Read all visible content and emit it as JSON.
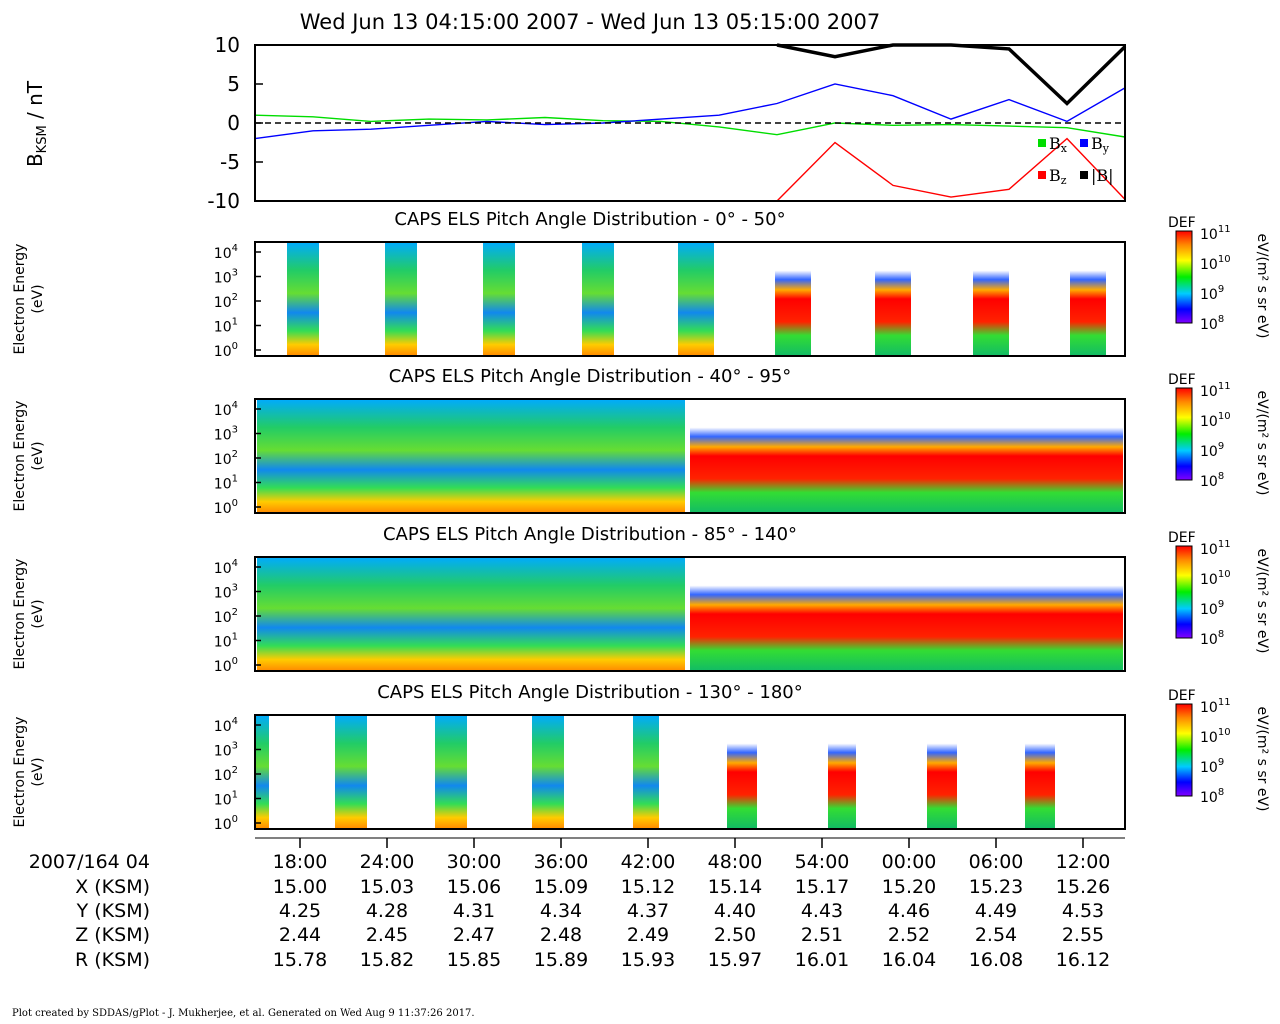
{
  "title": "Wed Jun 13 04:15:00 2007 - Wed Jun 13 05:15:00 2007",
  "footer": "Plot created by SDDAS/gPlot - J. Mukherjee, et al.  Generated on Wed Aug 9 11:37:26 2017.",
  "colors": {
    "bx": "#00dd00",
    "by": "#0000ff",
    "bz": "#ff0000",
    "bmag": "#000000"
  },
  "icons": [
    "colorbar-gradient"
  ],
  "chart_data": [
    {
      "type": "line",
      "ylabel": "B",
      "ylabel_sub": "KSM",
      "ylabel_unit": " / nT",
      "ylim": [
        -10,
        10
      ],
      "yticks": [
        "10",
        "5",
        "0",
        "-5",
        "-10"
      ],
      "x_minutes_after_0415": [
        0,
        4,
        8,
        12,
        16,
        20,
        24,
        28,
        32,
        36,
        40,
        44,
        48,
        52,
        56,
        60
      ],
      "series": [
        {
          "name": "B",
          "sub": "x",
          "color": "#00dd00",
          "values": [
            1.0,
            0.8,
            0.2,
            0.5,
            0.4,
            0.7,
            0.3,
            0.2,
            -0.5,
            -1.5,
            0.0,
            -0.3,
            -0.2,
            -0.4,
            -0.6,
            -1.8
          ]
        },
        {
          "name": "B",
          "sub": "y",
          "color": "#0000ff",
          "values": [
            -2.0,
            -1.0,
            -0.8,
            -0.3,
            0.2,
            -0.2,
            0.0,
            0.5,
            1.0,
            2.5,
            5.0,
            3.5,
            0.5,
            3.0,
            0.2,
            4.5
          ]
        },
        {
          "name": "B",
          "sub": "z",
          "color": "#ff0000",
          "values": [
            null,
            null,
            null,
            null,
            null,
            null,
            null,
            null,
            null,
            -10.0,
            -2.5,
            -8.0,
            -9.5,
            -8.5,
            -2.0,
            -9.8
          ]
        },
        {
          "name": "|B|",
          "sub": "",
          "color": "#000000",
          "values": [
            null,
            null,
            null,
            null,
            null,
            null,
            null,
            null,
            null,
            10.0,
            8.5,
            10.0,
            10.0,
            9.5,
            2.5,
            9.8
          ]
        }
      ]
    },
    {
      "type": "heatmap",
      "title": "CAPS ELS Pitch Angle Distribution - 0° - 50°",
      "ylabel": [
        "Electron Energy",
        "(eV)"
      ],
      "yticks": [
        "10",
        "10",
        "10",
        "10",
        "10"
      ],
      "ytick_exp": [
        "4",
        "3",
        "2",
        "1",
        "0"
      ],
      "colorbar": {
        "label": "DEF",
        "unit": "eV/(m² s sr eV)",
        "ticks": [
          "10",
          "10",
          "10",
          "10"
        ],
        "tick_exp": [
          "11",
          "10",
          "9",
          "8"
        ]
      }
    },
    {
      "type": "heatmap",
      "title": "CAPS ELS Pitch Angle Distribution - 40° - 95°",
      "ylabel": [
        "Electron Energy",
        "(eV)"
      ],
      "yticks": [
        "10",
        "10",
        "10",
        "10",
        "10"
      ],
      "ytick_exp": [
        "4",
        "3",
        "2",
        "1",
        "0"
      ],
      "colorbar": {
        "label": "DEF",
        "unit": "eV/(m² s sr eV)",
        "ticks": [
          "10",
          "10",
          "10",
          "10"
        ],
        "tick_exp": [
          "11",
          "10",
          "9",
          "8"
        ]
      }
    },
    {
      "type": "heatmap",
      "title": "CAPS ELS Pitch Angle Distribution - 85° - 140°",
      "ylabel": [
        "Electron Energy",
        "(eV)"
      ],
      "yticks": [
        "10",
        "10",
        "10",
        "10",
        "10"
      ],
      "ytick_exp": [
        "4",
        "3",
        "2",
        "1",
        "0"
      ],
      "colorbar": {
        "label": "DEF",
        "unit": "eV/(m² s sr eV)",
        "ticks": [
          "10",
          "10",
          "10",
          "10"
        ],
        "tick_exp": [
          "11",
          "10",
          "9",
          "8"
        ]
      }
    },
    {
      "type": "heatmap",
      "title": "CAPS ELS Pitch Angle Distribution - 130° - 180°",
      "ylabel": [
        "Electron Energy",
        "(eV)"
      ],
      "yticks": [
        "10",
        "10",
        "10",
        "10",
        "10"
      ],
      "ytick_exp": [
        "4",
        "3",
        "2",
        "1",
        "0"
      ],
      "colorbar": {
        "label": "DEF",
        "unit": "eV/(m² s sr eV)",
        "ticks": [
          "10",
          "10",
          "10",
          "10"
        ],
        "tick_exp": [
          "11",
          "10",
          "9",
          "8"
        ]
      }
    }
  ],
  "x_axis": {
    "row_labels": [
      "2007/164 04",
      "X (KSM)",
      "Y (KSM)",
      "Z (KSM)",
      "R (KSM)"
    ],
    "ticks": [
      [
        "18:00",
        "15.00",
        "4.25",
        "2.44",
        "15.78"
      ],
      [
        "24:00",
        "15.03",
        "4.28",
        "2.45",
        "15.82"
      ],
      [
        "30:00",
        "15.06",
        "4.31",
        "2.47",
        "15.85"
      ],
      [
        "36:00",
        "15.09",
        "4.34",
        "2.48",
        "15.89"
      ],
      [
        "42:00",
        "15.12",
        "4.37",
        "2.49",
        "15.93"
      ],
      [
        "48:00",
        "15.14",
        "4.40",
        "2.50",
        "15.97"
      ],
      [
        "54:00",
        "15.17",
        "4.43",
        "2.51",
        "16.01"
      ],
      [
        "00:00",
        "15.20",
        "4.46",
        "2.52",
        "16.04"
      ],
      [
        "06:00",
        "15.23",
        "4.49",
        "2.54",
        "16.08"
      ],
      [
        "12:00",
        "15.26",
        "4.53",
        "2.55",
        "16.12"
      ]
    ]
  }
}
